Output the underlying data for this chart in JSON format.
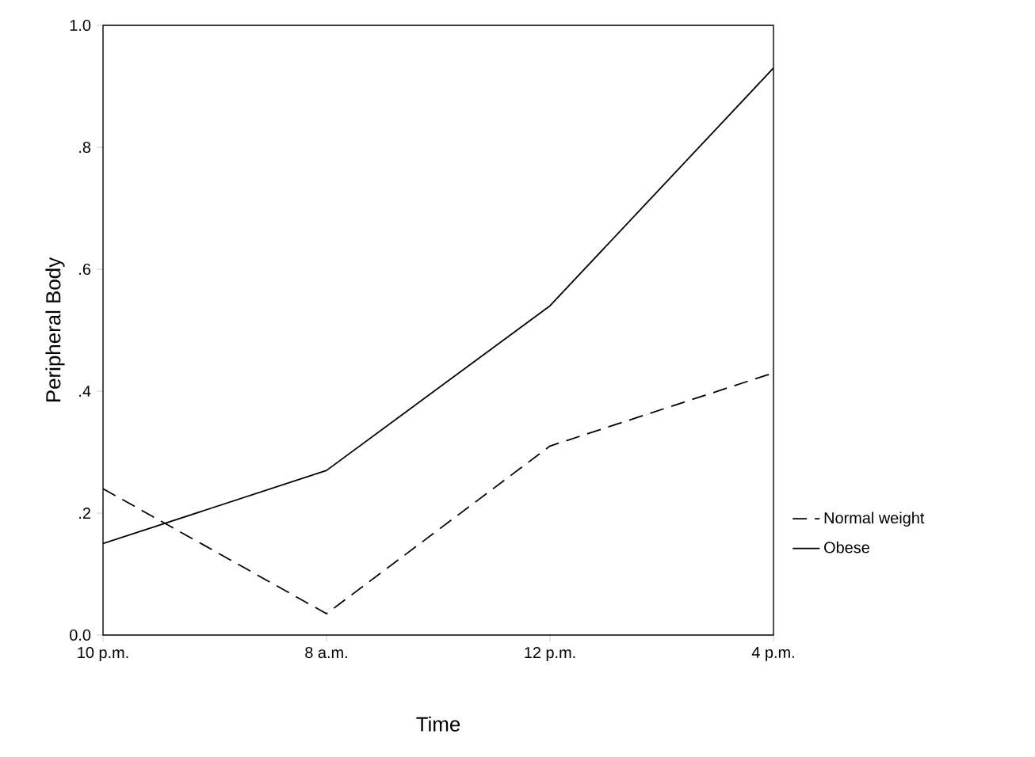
{
  "chart_data": {
    "type": "line",
    "xlabel": "Time",
    "ylabel": "Peripheral Body",
    "categories": [
      "10 p.m.",
      "8 a.m.",
      "12 p.m.",
      "4 p.m."
    ],
    "series": [
      {
        "name": "Normal weight",
        "color": "#000000",
        "line_style": "dashed",
        "values": [
          0.24,
          0.035,
          0.31,
          0.43
        ]
      },
      {
        "name": "Obese",
        "color": "#000000",
        "line_style": "solid",
        "values": [
          0.15,
          0.27,
          0.54,
          0.93
        ]
      }
    ],
    "ylim": [
      0,
      1
    ],
    "yticks": [
      {
        "value": 0,
        "label": "0.0"
      },
      {
        "value": 0.2,
        "label": ".2"
      },
      {
        "value": 0.4,
        "label": ".4"
      },
      {
        "value": 0.6,
        "label": ".6"
      },
      {
        "value": 0.8,
        "label": ".8"
      },
      {
        "value": 1,
        "label": "1.0"
      }
    ],
    "legend": "right",
    "marker": "none",
    "grid": false
  }
}
